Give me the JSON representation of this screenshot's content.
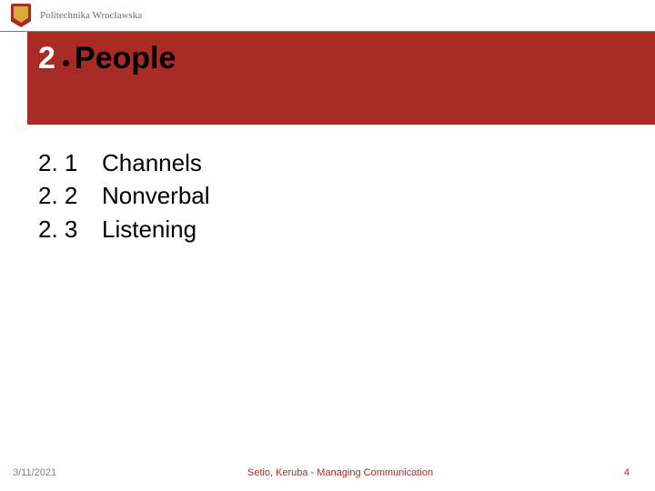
{
  "university_name": "Politechnika Wrocławska",
  "colors": {
    "brand_red": "#a92b23",
    "crest_gold": "#d9a93a",
    "gray_text": "#6c6c6c",
    "black": "#000000",
    "white": "#ffffff",
    "rule_gray": "#7a7a7a",
    "footer_gray": "#7f7f7f"
  },
  "title": {
    "number": "2",
    "word": "People",
    "fontsize": 34
  },
  "items": [
    {
      "num": "2. 1",
      "label": "Channels"
    },
    {
      "num": "2. 2",
      "label": "Nonverbal"
    },
    {
      "num": "2. 3",
      "label": "Listening"
    }
  ],
  "footer": {
    "date": "3/11/2021",
    "center": "Setio, Keruba - Managing Communication",
    "page": "4"
  },
  "typography": {
    "body_fontsize": 26,
    "footer_fontsize": 11,
    "uni_fontsize": 11
  }
}
